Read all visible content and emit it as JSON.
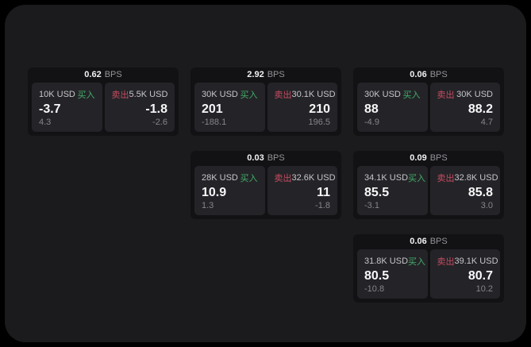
{
  "colors": {
    "page_bg": "#000000",
    "window_bg": "#1b1b1d",
    "card_bg": "#121214",
    "panel_bg": "#242428",
    "buy_accent": "#42ac68",
    "sell_accent": "#c74b61",
    "primary_text": "#f7f7f9",
    "muted_text": "#85858a"
  },
  "labels": {
    "bps": "BPS",
    "buy": "买入",
    "sell": "卖出"
  },
  "cards": [
    {
      "bps": "0.62",
      "grid": {
        "row": 1,
        "col": 1
      },
      "buy": {
        "notional": "10K USD",
        "price": "-3.7",
        "delta": "4.3"
      },
      "sell": {
        "notional": "5.5K USD",
        "price": "-1.8",
        "delta": "-2.6"
      }
    },
    {
      "bps": "2.92",
      "grid": {
        "row": 1,
        "col": 2
      },
      "buy": {
        "notional": "30K USD",
        "price": "201",
        "delta": "-188.1"
      },
      "sell": {
        "notional": "30.1K USD",
        "price": "210",
        "delta": "196.5"
      }
    },
    {
      "bps": "0.06",
      "grid": {
        "row": 1,
        "col": 3
      },
      "buy": {
        "notional": "30K USD",
        "price": "88",
        "delta": "-4.9"
      },
      "sell": {
        "notional": "30K USD",
        "price": "88.2",
        "delta": "4.7"
      }
    },
    {
      "bps": "0.03",
      "grid": {
        "row": 2,
        "col": 2
      },
      "buy": {
        "notional": "28K USD",
        "price": "10.9",
        "delta": "1.3"
      },
      "sell": {
        "notional": "32.6K USD",
        "price": "11",
        "delta": "-1.8"
      }
    },
    {
      "bps": "0.09",
      "grid": {
        "row": 2,
        "col": 3
      },
      "buy": {
        "notional": "34.1K USD",
        "price": "85.5",
        "delta": "-3.1"
      },
      "sell": {
        "notional": "32.8K USD",
        "price": "85.8",
        "delta": "3.0"
      }
    },
    {
      "bps": "0.06",
      "grid": {
        "row": 3,
        "col": 3
      },
      "buy": {
        "notional": "31.8K USD",
        "price": "80.5",
        "delta": "-10.8"
      },
      "sell": {
        "notional": "39.1K USD",
        "price": "80.7",
        "delta": "10.2"
      }
    }
  ]
}
